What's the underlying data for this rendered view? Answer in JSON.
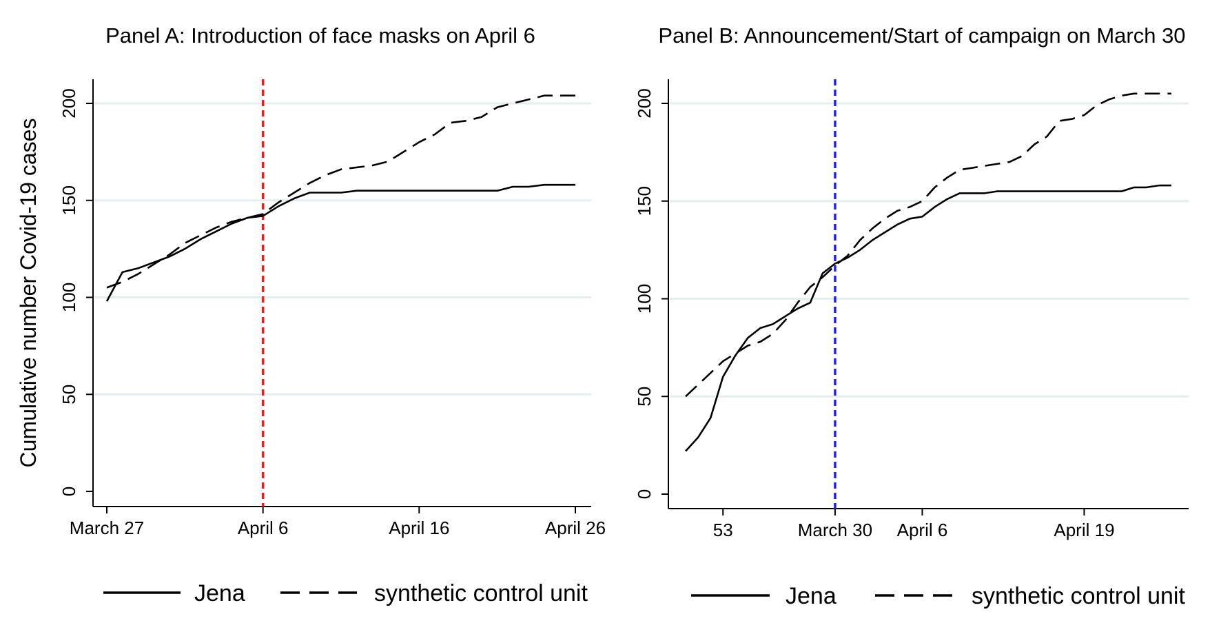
{
  "chart_data": [
    {
      "type": "line",
      "title": "Panel A: Introduction of face masks on April 6",
      "ylabel": "Cumulative number Covid-19 cases",
      "xlabel": "",
      "x_unit": "days since March 27",
      "x_ticks": [
        {
          "x": 0,
          "label": "March 27"
        },
        {
          "x": 10,
          "label": "April 6"
        },
        {
          "x": 20,
          "label": "April 16"
        },
        {
          "x": 30,
          "label": "April 26"
        }
      ],
      "xlim": [
        0,
        30
      ],
      "ylim": [
        0,
        200
      ],
      "y_ticks": [
        0,
        50,
        100,
        150,
        200
      ],
      "grid": true,
      "vline": {
        "x": 10,
        "color": "#e8211d",
        "style": "dashed"
      },
      "legend": "bottom",
      "series": [
        {
          "name": "Jena",
          "style": "solid",
          "color": "#000000",
          "x": [
            0,
            1,
            2,
            3,
            4,
            5,
            6,
            7,
            8,
            9,
            10,
            11,
            12,
            13,
            14,
            15,
            16,
            17,
            18,
            19,
            20,
            21,
            22,
            23,
            24,
            25,
            26,
            27,
            28,
            29,
            30
          ],
          "values": [
            98,
            113,
            115,
            118,
            121,
            125,
            130,
            134,
            138,
            141,
            142,
            147,
            151,
            154,
            154,
            154,
            155,
            155,
            155,
            155,
            155,
            155,
            155,
            155,
            155,
            155,
            157,
            157,
            158,
            158,
            158
          ]
        },
        {
          "name": "synthetic control unit",
          "style": "dashed",
          "color": "#000000",
          "x": [
            0,
            1,
            2,
            3,
            4,
            5,
            6,
            7,
            8,
            9,
            10,
            11,
            12,
            13,
            14,
            15,
            16,
            17,
            18,
            19,
            20,
            21,
            22,
            23,
            24,
            25,
            26,
            27,
            28,
            29,
            30
          ],
          "values": [
            105,
            108,
            112,
            117,
            122,
            128,
            132,
            136,
            139,
            141,
            143,
            149,
            154,
            159,
            163,
            166,
            167,
            168,
            170,
            175,
            180,
            184,
            190,
            191,
            193,
            198,
            200,
            202,
            204,
            204,
            204
          ]
        }
      ]
    },
    {
      "type": "line",
      "title": "Panel B: Announcement/Start of campaign on March 30",
      "ylabel": "",
      "xlabel": "",
      "x_unit": "days since March 30",
      "x_ticks": [
        {
          "x": -9,
          "label": "53"
        },
        {
          "x": 0,
          "label": "March 30"
        },
        {
          "x": 7,
          "label": "April 6"
        },
        {
          "x": 20,
          "label": "April 19"
        }
      ],
      "xlim": [
        -12,
        27
      ],
      "ylim": [
        0,
        200
      ],
      "y_ticks": [
        0,
        50,
        100,
        150,
        200
      ],
      "grid": true,
      "vline": {
        "x": 0,
        "color": "#1f22e8",
        "style": "dashed"
      },
      "legend": "bottom",
      "series": [
        {
          "name": "Jena",
          "style": "solid",
          "color": "#000000",
          "x": [
            -12,
            -11,
            -10,
            -9,
            -8,
            -7,
            -6,
            -5,
            -4,
            -3,
            -2,
            -1,
            0,
            1,
            2,
            3,
            4,
            5,
            6,
            7,
            8,
            9,
            10,
            11,
            12,
            13,
            14,
            15,
            16,
            17,
            18,
            19,
            20,
            21,
            22,
            23,
            24,
            25,
            26,
            27
          ],
          "values": [
            22,
            29,
            39,
            60,
            71,
            80,
            85,
            87,
            91,
            95,
            98,
            113,
            118,
            121,
            125,
            130,
            134,
            138,
            141,
            142,
            147,
            151,
            154,
            154,
            154,
            155,
            155,
            155,
            155,
            155,
            155,
            155,
            155,
            155,
            155,
            155,
            157,
            157,
            158,
            158
          ]
        },
        {
          "name": "synthetic control unit",
          "style": "dashed",
          "color": "#000000",
          "x": [
            -12,
            -11,
            -10,
            -9,
            -8,
            -7,
            -6,
            -5,
            -4,
            -3,
            -2,
            -1,
            0,
            1,
            2,
            3,
            4,
            5,
            6,
            7,
            8,
            9,
            10,
            11,
            12,
            13,
            14,
            15,
            16,
            17,
            18,
            19,
            20,
            21,
            22,
            23,
            24,
            25,
            26,
            27
          ],
          "values": [
            50,
            56,
            62,
            68,
            72,
            76,
            78,
            82,
            89,
            98,
            106,
            111,
            117,
            122,
            130,
            136,
            141,
            145,
            147,
            150,
            157,
            162,
            166,
            167,
            168,
            169,
            170,
            173,
            179,
            183,
            191,
            192,
            194,
            199,
            202,
            204,
            205,
            205,
            205,
            205
          ]
        }
      ]
    }
  ]
}
